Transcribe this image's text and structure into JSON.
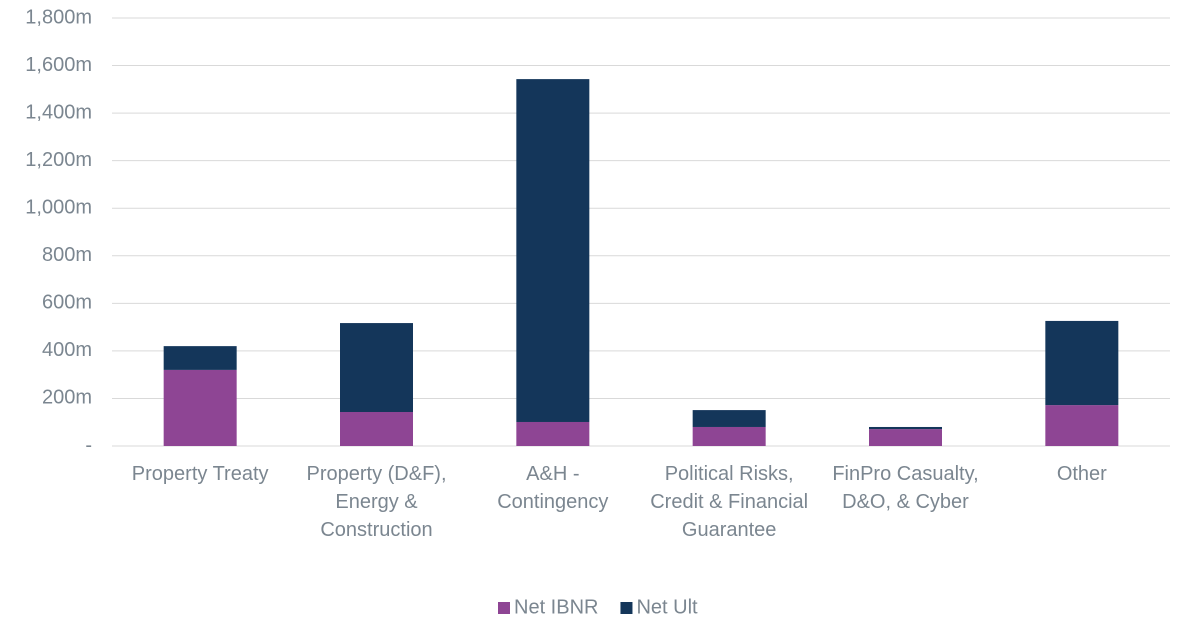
{
  "chart_data": {
    "type": "stacked_bar",
    "categories": [
      "Property Treaty",
      "Property (D&F), Energy & Construction",
      "A&H - Contingency",
      "Political Risks, Credit & Financial Guarantee",
      "FinPro Casualty, D&O, & Cyber",
      "Other"
    ],
    "series": [
      {
        "name": "Net IBNR",
        "color": "#8e4594",
        "values": [
          320,
          143,
          101,
          80,
          71,
          172
        ]
      },
      {
        "name": "Net Ult",
        "color": "#14365a",
        "values": [
          100,
          374,
          1442,
          71,
          9,
          354
        ]
      }
    ],
    "ylim": [
      0,
      1800
    ],
    "yticks": [
      {
        "value": 0,
        "label": "-"
      },
      {
        "value": 200,
        "label": "200m"
      },
      {
        "value": 400,
        "label": "400m"
      },
      {
        "value": 600,
        "label": "600m"
      },
      {
        "value": 800,
        "label": "800m"
      },
      {
        "value": 1000,
        "label": "1,000m"
      },
      {
        "value": 1200,
        "label": "1,200m"
      },
      {
        "value": 1400,
        "label": "1,400m"
      },
      {
        "value": 1600,
        "label": "1,600m"
      },
      {
        "value": 1800,
        "label": "1,800m"
      }
    ],
    "grid": true,
    "legend": "bottom"
  }
}
